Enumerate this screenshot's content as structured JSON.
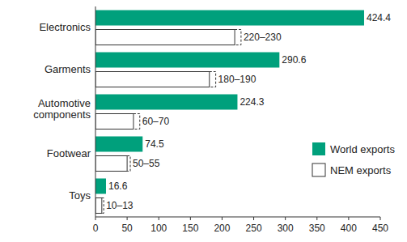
{
  "chart_data": {
    "type": "bar",
    "orientation": "horizontal",
    "categories": [
      "Electronics",
      "Garments",
      "Automotive components",
      "Footwear",
      "Toys"
    ],
    "series": [
      {
        "name": "World exports",
        "color": "#00a07c",
        "values": [
          424.4,
          290.6,
          224.3,
          74.5,
          16.6
        ]
      },
      {
        "name": "NEM exports",
        "color": "#ffffff",
        "values": [
          220,
          180,
          60,
          50,
          10
        ],
        "upper": [
          230,
          190,
          70,
          55,
          13
        ],
        "value_labels": [
          "220–230",
          "180–190",
          "60–70",
          "50–55",
          "10–13"
        ]
      }
    ],
    "xlim": [
      0,
      450
    ],
    "xticks": [
      0,
      50,
      100,
      150,
      200,
      250,
      300,
      350,
      400,
      450
    ],
    "grid": false,
    "legend": "right",
    "data_labels": true
  }
}
